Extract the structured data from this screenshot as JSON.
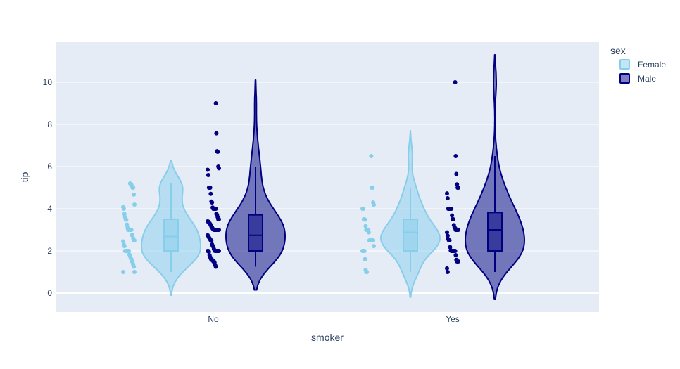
{
  "chart_data": {
    "type": "violin",
    "xlabel": "smoker",
    "ylabel": "tip",
    "categories": [
      "No",
      "Yes"
    ],
    "ylim": [
      -0.9,
      11.9
    ],
    "yticks": [
      0,
      2,
      4,
      6,
      8,
      10
    ],
    "grid": true,
    "legend": {
      "title": "sex",
      "position": "top-right",
      "items": [
        {
          "label": "Female",
          "color": "#87ceeb"
        },
        {
          "label": "Male",
          "color": "#000080"
        }
      ]
    },
    "series": [
      {
        "name": "Female",
        "color": "#87ceeb",
        "stats": {
          "No": {
            "min": 1.0,
            "q1": 2.0,
            "median": 2.68,
            "q3": 3.5,
            "max": 5.2,
            "violin_min": -0.1,
            "violin_max": 6.3
          },
          "Yes": {
            "min": 1.0,
            "q1": 2.0,
            "median": 2.88,
            "q3": 3.5,
            "max": 5.0,
            "violin_min": -0.2,
            "violin_max": 7.7
          }
        },
        "points": {
          "No": [
            1.0,
            1.0,
            1.25,
            1.36,
            1.5,
            1.5,
            1.61,
            1.66,
            1.75,
            1.83,
            2.0,
            2.0,
            2.0,
            2.0,
            2.0,
            2.0,
            2.0,
            2.23,
            2.3,
            2.45,
            2.5,
            2.5,
            2.6,
            2.75,
            2.75,
            3.0,
            3.0,
            3.0,
            3.0,
            3.0,
            3.0,
            3.1,
            3.25,
            3.48,
            3.5,
            3.6,
            3.75,
            4.0,
            4.08,
            4.2,
            4.67,
            5.0,
            5.0,
            5.07,
            5.14,
            5.17,
            5.2
          ],
          "Yes": [
            1.0,
            1.0,
            1.1,
            1.61,
            2.0,
            2.0,
            2.0,
            2.0,
            2.23,
            2.5,
            2.5,
            2.5,
            2.5,
            2.5,
            2.5,
            2.5,
            2.88,
            3.0,
            3.0,
            3.0,
            3.0,
            3.18,
            3.48,
            3.5,
            3.5,
            4.0,
            4.0,
            4.19,
            4.3,
            5.0,
            5.0,
            6.5
          ]
        }
      },
      {
        "name": "Male",
        "color": "#000080",
        "stats": {
          "No": {
            "min": 1.25,
            "q1": 2.0,
            "median": 2.74,
            "q3": 3.71,
            "max": 6.0,
            "violin_min": 0.15,
            "violin_max": 10.1
          },
          "Yes": {
            "min": 1.0,
            "q1": 2.0,
            "median": 3.0,
            "q3": 3.82,
            "max": 6.5,
            "violin_min": -0.3,
            "violin_max": 11.3
          }
        },
        "points": {
          "No": [
            1.25,
            1.32,
            1.44,
            1.5,
            1.5,
            1.56,
            1.57,
            1.58,
            1.64,
            1.71,
            1.8,
            1.96,
            2.0,
            2.0,
            2.0,
            2.0,
            2.0,
            2.0,
            2.0,
            2.0,
            2.0,
            2.01,
            2.09,
            2.2,
            2.24,
            2.31,
            2.5,
            2.5,
            2.54,
            2.6,
            2.64,
            2.71,
            2.74,
            3.0,
            3.0,
            3.0,
            3.0,
            3.0,
            3.0,
            3.0,
            3.0,
            3.0,
            3.02,
            3.06,
            3.12,
            3.15,
            3.23,
            3.27,
            3.31,
            3.35,
            3.39,
            3.4,
            3.5,
            3.5,
            3.61,
            3.71,
            3.76,
            4.0,
            4.0,
            4.0,
            4.0,
            4.0,
            4.06,
            4.3,
            4.34,
            4.71,
            5.0,
            5.0,
            5.0,
            5.6,
            5.85,
            5.92,
            6.0,
            6.7,
            6.73,
            7.58,
            9.0
          ],
          "Yes": [
            1.0,
            1.17,
            1.5,
            1.5,
            1.5,
            1.58,
            1.8,
            2.0,
            2.0,
            2.0,
            2.0,
            2.0,
            2.0,
            2.0,
            2.03,
            2.18,
            2.5,
            2.5,
            2.56,
            2.72,
            2.88,
            3.0,
            3.0,
            3.0,
            3.0,
            3.0,
            3.08,
            3.11,
            3.22,
            3.5,
            3.5,
            3.68,
            4.0,
            4.0,
            4.0,
            4.0,
            4.0,
            4.0,
            4.5,
            4.73,
            5.0,
            5.0,
            5.16,
            5.65,
            6.5,
            10.0
          ]
        }
      }
    ]
  }
}
